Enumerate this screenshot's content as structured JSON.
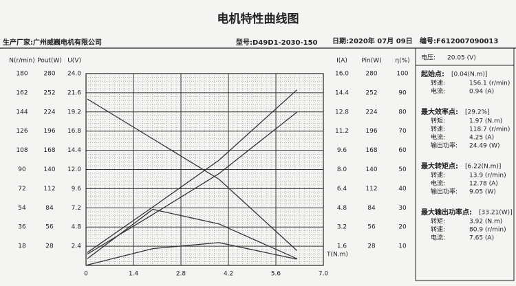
{
  "header": {
    "title": "电机特性曲线图",
    "maker": "生产厂家:广州威巍电机有限公司",
    "model": "型号:D49D1-2030-150",
    "date": "日期:2020年 07月 09日",
    "serial": "编号:F612007090013"
  },
  "chart_data": {
    "type": "line",
    "xlabel": "T(N.m)",
    "xlim": [
      0,
      7
    ],
    "xticks": [
      0,
      1.4,
      2.8,
      4.2,
      5.6,
      {
        "value": 7,
        "label": "7.0"
      }
    ],
    "grid": true,
    "y_axes": [
      {
        "label": "N(r/min)",
        "lim": [
          0,
          180
        ],
        "ticks": [
          18,
          36,
          54,
          72,
          90,
          108,
          126,
          144,
          162,
          180
        ]
      },
      {
        "label": "Pout(W)",
        "lim": [
          0,
          280
        ],
        "ticks": [
          28,
          56,
          84,
          112,
          140,
          168,
          196,
          224,
          252,
          280
        ]
      },
      {
        "label": "U(V)",
        "lim": [
          0,
          24
        ],
        "ticks": [
          2.4,
          4.8,
          7.2,
          9.6,
          {
            "value": 12,
            "label": "12.0"
          },
          14.4,
          16.8,
          19.2,
          21.6,
          {
            "value": 24,
            "label": "24.0"
          }
        ]
      },
      {
        "label": "I(A)",
        "lim": [
          0,
          16
        ],
        "ticks": [
          1.6,
          3.2,
          4.8,
          6.4,
          {
            "value": 8,
            "label": "8.0"
          },
          9.6,
          11.2,
          12.8,
          14.4,
          {
            "value": 16,
            "label": "16.0"
          }
        ]
      },
      {
        "label": "Pin(W)",
        "lim": [
          0,
          280
        ],
        "ticks": [
          28,
          56,
          84,
          112,
          140,
          168,
          196,
          224,
          252,
          280
        ]
      },
      {
        "label": "η(%)",
        "lim": [
          0,
          100
        ],
        "ticks": [
          10,
          20,
          30,
          40,
          50,
          60,
          70,
          80,
          90,
          100
        ]
      }
    ],
    "x": [
      0.04,
      1.97,
      3.92,
      6.22
    ],
    "series": [
      {
        "axis": 0,
        "color": "#333333",
        "values": [
          156.1,
          118.7,
          80.9,
          13.9
        ]
      },
      {
        "axis": 3,
        "color": "#333333",
        "values": [
          0.94,
          4.25,
          7.65,
          12.78
        ]
      },
      {
        "axis": 4,
        "color": "#333333",
        "values": [
          18.8,
          85.2,
          153.4,
          256.2
        ]
      },
      {
        "axis": 1,
        "color": "#333333",
        "values": [
          0.65,
          24.49,
          33.21,
          9.05
        ]
      },
      {
        "axis": 5,
        "color": "#333333",
        "values": [
          3.5,
          29.2,
          21.6,
          3.5
        ]
      }
    ]
  },
  "side_panel": {
    "voltage": [
      "电压:",
      "20.05 (V)"
    ],
    "groups": [
      {
        "title": "起始点:",
        "value": "[0.04(N.m)]",
        "rows": [
          [
            "转速:",
            "156.1 (r/min)"
          ],
          [
            "电流:",
            "0.94 (A)"
          ]
        ]
      },
      {
        "title": "最大效率点:",
        "value": "[29.2%]",
        "rows": [
          [
            "转矩:",
            "1.97 (N.m)"
          ],
          [
            "转速:",
            "118.7 (r/min)"
          ],
          [
            "电流:",
            "4.25 (A)"
          ],
          [
            "输出功率:",
            "24.49 (W)"
          ]
        ]
      },
      {
        "title": "最大转矩点:",
        "value": "[6.22(N.m)]",
        "rows": [
          [
            "转速:",
            "13.9 (r/min)"
          ],
          [
            "电流:",
            "12.78 (A)"
          ],
          [
            "输出功率:",
            "9.05 (W)"
          ]
        ]
      },
      {
        "title": "最大输出功率点:",
        "value": "[33.21(W)]",
        "rows": [
          [
            "转矩:",
            "3.92 (N.m)"
          ],
          [
            "转速:",
            "80.9 (r/min)"
          ],
          [
            "电流:",
            "7.65 (A)"
          ]
        ]
      }
    ]
  }
}
